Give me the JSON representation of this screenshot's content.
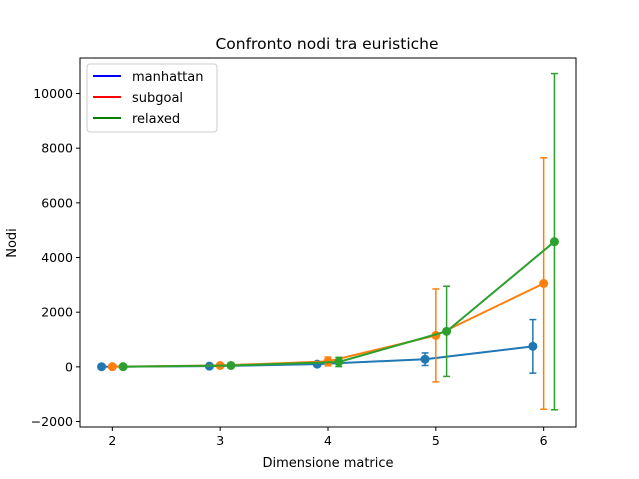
{
  "chart_data": {
    "type": "line",
    "title": "Confronto nodi tra euristiche",
    "xlabel": "Dimensione matrice",
    "ylabel": "Nodi",
    "xlim": [
      1.7,
      6.3
    ],
    "ylim": [
      -2200,
      11300
    ],
    "xticks": [
      "2",
      "3",
      "4",
      "5",
      "6"
    ],
    "yticks": [
      "−2000",
      "0",
      "2000",
      "4000",
      "6000",
      "8000",
      "10000"
    ],
    "grid": false,
    "legend_position": "top-left",
    "legend": [
      {
        "name": "manhattan",
        "color": "#0000ff"
      },
      {
        "name": "subgoal",
        "color": "#ff0000"
      },
      {
        "name": "relaxed",
        "color": "#008000"
      }
    ],
    "series": [
      {
        "name": "manhattan",
        "color": "#1f77b4",
        "x": [
          1.9,
          2.9,
          3.9,
          4.9,
          5.9
        ],
        "y": [
          5,
          25,
          100,
          280,
          750
        ],
        "yerr": [
          3,
          15,
          60,
          230,
          980
        ]
      },
      {
        "name": "subgoal",
        "color": "#ff7f0e",
        "x": [
          2.0,
          3.0,
          4.0,
          5.0,
          6.0
        ],
        "y": [
          8,
          50,
          200,
          1150,
          3050
        ],
        "yerr": [
          5,
          30,
          160,
          1700,
          4600
        ]
      },
      {
        "name": "relaxed",
        "color": "#2ca02c",
        "x": [
          2.1,
          3.1,
          4.1,
          5.1,
          6.1
        ],
        "y": [
          8,
          50,
          180,
          1300,
          4580
        ],
        "yerr": [
          5,
          30,
          170,
          1650,
          6150
        ]
      }
    ]
  }
}
